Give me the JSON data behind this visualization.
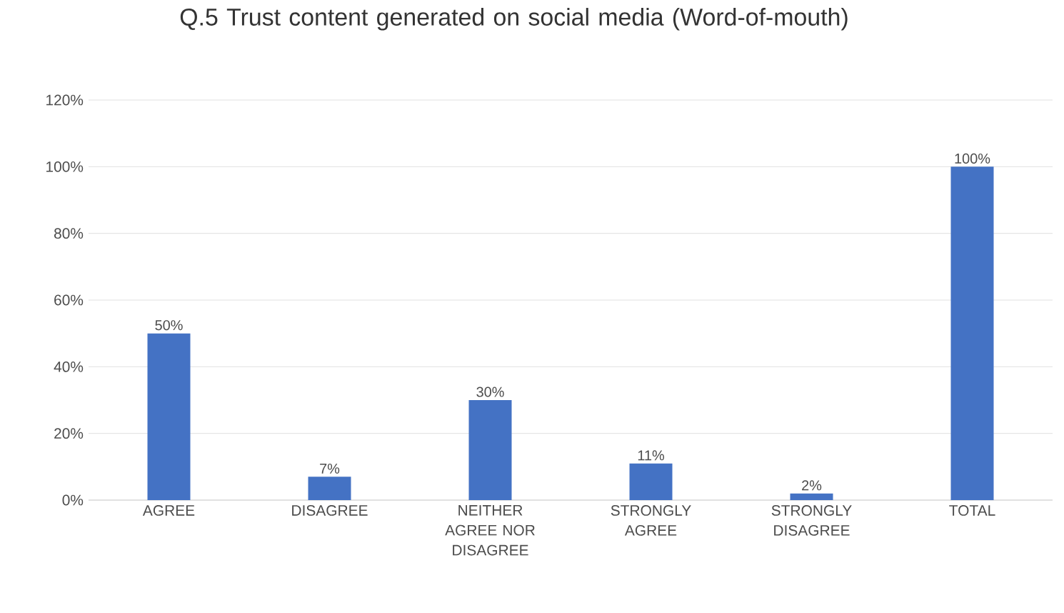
{
  "chart_data": {
    "type": "bar",
    "title": "Q.5 Trust content generated on social media (Word-of-mouth)",
    "categories": [
      "AGREE",
      "DISAGREE",
      "NEITHER AGREE NOR DISAGREE",
      "STRONGLY AGREE",
      "STRONGLY DISAGREE",
      "TOTAL"
    ],
    "values": [
      50,
      7,
      30,
      11,
      2,
      100
    ],
    "value_labels": [
      "50%",
      "7%",
      "30%",
      "11%",
      "2%",
      "100%"
    ],
    "color": "#4472c4",
    "ylim": [
      0,
      120
    ],
    "yticks": [
      {
        "value": 0,
        "label": "0%"
      },
      {
        "value": 20,
        "label": "20%"
      },
      {
        "value": 40,
        "label": "40%"
      },
      {
        "value": 60,
        "label": "60%"
      },
      {
        "value": 80,
        "label": "80%"
      },
      {
        "value": 100,
        "label": "100%"
      },
      {
        "value": 120,
        "label": "120%"
      }
    ],
    "grid": "y"
  }
}
